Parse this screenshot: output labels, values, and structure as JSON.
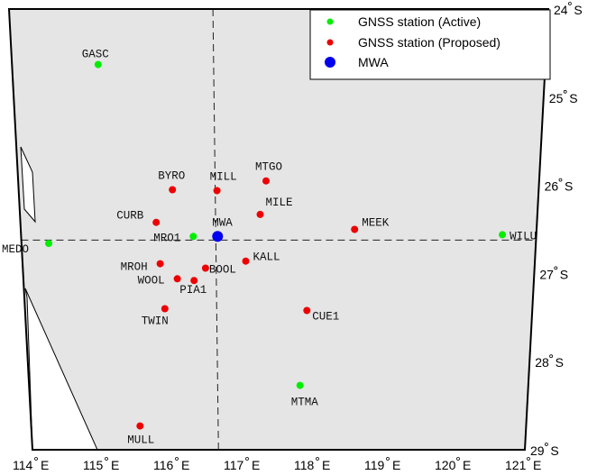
{
  "map": {
    "lat_labels": [
      {
        "deg": "24",
        "lat": 24
      },
      {
        "deg": "25",
        "lat": 25
      },
      {
        "deg": "26",
        "lat": 26
      },
      {
        "deg": "27",
        "lat": 27
      },
      {
        "deg": "28",
        "lat": 28
      },
      {
        "deg": "29",
        "lat": 29
      }
    ],
    "lat_suffix": "S",
    "lon_labels": [
      {
        "deg": "114",
        "lon": 114
      },
      {
        "deg": "115",
        "lon": 115
      },
      {
        "deg": "116",
        "lon": 116
      },
      {
        "deg": "117",
        "lon": 117
      },
      {
        "deg": "118",
        "lon": 118
      },
      {
        "deg": "119",
        "lon": 119
      },
      {
        "deg": "120",
        "lon": 120
      },
      {
        "deg": "121",
        "lon": 121
      }
    ],
    "lon_suffix": "E",
    "colors": {
      "land": "#e5e5e5",
      "sea": "#ffffff",
      "active": "#00ee00",
      "proposed": "#ee0000",
      "mwa": "#0000ee"
    }
  },
  "legend": {
    "active_label": "GNSS station (Active)",
    "proposed_label": "GNSS station (Proposed)",
    "mwa_label": "MWA",
    "location": "top-right"
  },
  "stations": [
    {
      "name": "GASC",
      "type": "active",
      "lon": 115.13,
      "lat": 24.63
    },
    {
      "name": "MEDO",
      "type": "active",
      "lon": 114.37,
      "lat": 26.66
    },
    {
      "name": "MRO1",
      "type": "active",
      "lon": 116.34,
      "lat": 26.58
    },
    {
      "name": "WILU",
      "type": "active",
      "lon": 120.54,
      "lat": 26.56
    },
    {
      "name": "MTMA",
      "type": "active",
      "lon": 117.8,
      "lat": 28.27
    },
    {
      "name": "MWA",
      "type": "mwa",
      "lon": 116.67,
      "lat": 26.58
    },
    {
      "name": "MTGO",
      "type": "proposed",
      "lon": 117.33,
      "lat": 25.95
    },
    {
      "name": "BYRO",
      "type": "proposed",
      "lon": 116.07,
      "lat": 26.05
    },
    {
      "name": "MILL",
      "type": "proposed",
      "lon": 116.67,
      "lat": 26.06
    },
    {
      "name": "MILE",
      "type": "proposed",
      "lon": 117.25,
      "lat": 26.33
    },
    {
      "name": "CURB",
      "type": "proposed",
      "lon": 115.84,
      "lat": 26.42
    },
    {
      "name": "MEEK",
      "type": "proposed",
      "lon": 118.53,
      "lat": 26.5
    },
    {
      "name": "KALL",
      "type": "proposed",
      "lon": 117.05,
      "lat": 26.86
    },
    {
      "name": "MROH",
      "type": "proposed",
      "lon": 115.88,
      "lat": 26.89
    },
    {
      "name": "BOOL",
      "type": "proposed",
      "lon": 116.5,
      "lat": 26.94
    },
    {
      "name": "WOOL",
      "type": "proposed",
      "lon": 116.11,
      "lat": 27.06
    },
    {
      "name": "PIA1",
      "type": "proposed",
      "lon": 116.34,
      "lat": 27.08
    },
    {
      "name": "TWIN",
      "type": "proposed",
      "lon": 115.93,
      "lat": 27.4
    },
    {
      "name": "CUE1",
      "type": "proposed",
      "lon": 117.89,
      "lat": 27.42
    },
    {
      "name": "MULL",
      "type": "proposed",
      "lon": 115.54,
      "lat": 28.73
    }
  ]
}
